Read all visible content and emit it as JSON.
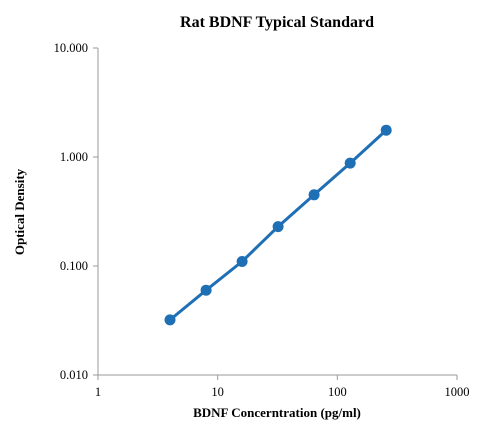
{
  "chart_data": {
    "type": "line",
    "title": "Rat BDNF Typical Standard",
    "xlabel": "BDNF Concerntration (pg/ml)",
    "ylabel": "Optical Density",
    "x_scale": "log",
    "y_scale": "log",
    "xlim": [
      1,
      1000
    ],
    "ylim": [
      0.01,
      10
    ],
    "x_ticks": [
      1,
      10,
      100,
      1000
    ],
    "x_tick_labels": [
      "1",
      "10",
      "100",
      "1000"
    ],
    "y_ticks": [
      0.01,
      0.1,
      1,
      10
    ],
    "y_tick_labels": [
      "0.010",
      "0.100",
      "1.000",
      "10.000"
    ],
    "grid": false,
    "legend": "none",
    "series": [
      {
        "color": "#1f6fb5",
        "x": [
          4,
          8,
          16,
          32,
          64,
          128,
          256
        ],
        "y": [
          0.032,
          0.06,
          0.11,
          0.23,
          0.45,
          0.88,
          1.76
        ]
      }
    ]
  }
}
